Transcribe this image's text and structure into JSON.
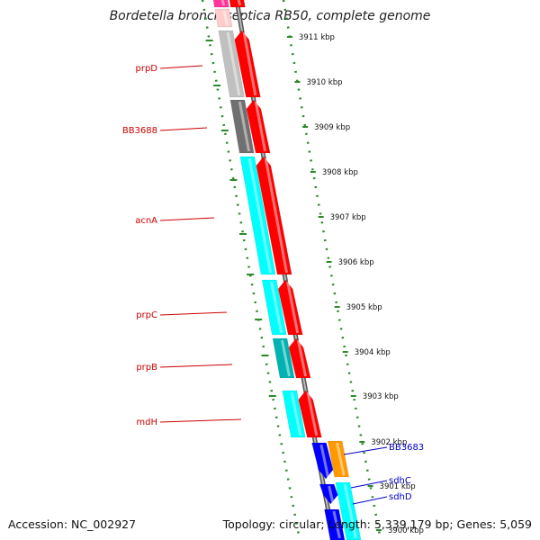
{
  "title": "Bordetella bronchiseptica RB50, complete genome",
  "accession": "Accession: NC_002927",
  "summary": "Topology: circular; Length: 5,339,179 bp; Genes: 5,059",
  "colors": {
    "forward": "#ff0000",
    "reverse_blue": "#0000ff",
    "orange": "#ff9900",
    "cyan": "#00ffff",
    "teal": "#00b3b3",
    "grey_light": "#c0c0c0",
    "grey_dark": "#707070",
    "pink": "#ff3399",
    "gc_ticks": "#2a8a2a",
    "label_red": "#cc0000",
    "label_blue": "#0000cc"
  },
  "ticks": [
    {
      "label": "3911 kbp"
    },
    {
      "label": "3910 kbp"
    },
    {
      "label": "3909 kbp"
    },
    {
      "label": "3908 kbp"
    },
    {
      "label": "3907 kbp"
    },
    {
      "label": "3906 kbp"
    },
    {
      "label": "3905 kbp"
    },
    {
      "label": "3904 kbp"
    },
    {
      "label": "3903 kbp"
    },
    {
      "label": "3902 kbp"
    },
    {
      "label": "3901 kbp"
    },
    {
      "label": "3900 kbp"
    }
  ],
  "genes_left": [
    {
      "name": "prpD",
      "color": "label_red"
    },
    {
      "name": "BB3688",
      "color": "label_red"
    },
    {
      "name": "acnA",
      "color": "label_red"
    },
    {
      "name": "prpC",
      "color": "label_red"
    },
    {
      "name": "prpB",
      "color": "label_red"
    },
    {
      "name": "mdH",
      "color": "label_red"
    }
  ],
  "genes_right": [
    {
      "name": "BB3683",
      "color": "label_blue"
    },
    {
      "name": "sdhC",
      "color": "label_blue"
    },
    {
      "name": "sdhD",
      "color": "label_blue"
    }
  ]
}
